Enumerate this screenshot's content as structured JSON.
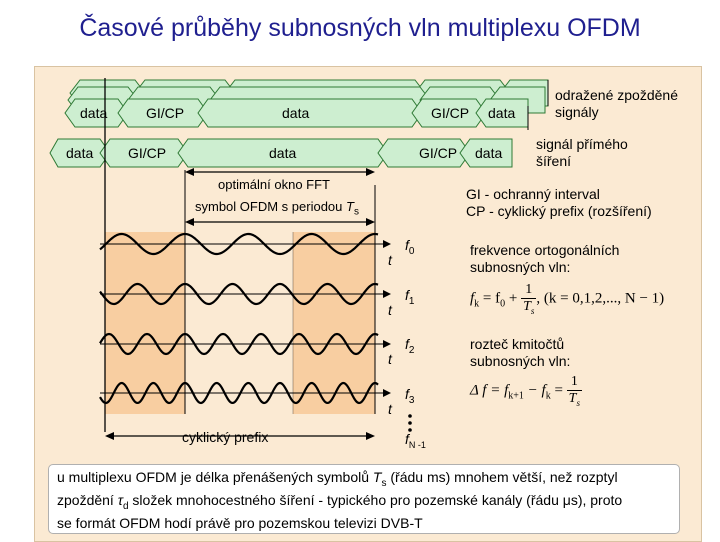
{
  "title": "Časové průběhy subnosných vln multiplexu OFDM",
  "segments": {
    "data": "data",
    "gi_cp": "GI/CP"
  },
  "labels": {
    "reflected": "odražené zpožděné",
    "reflected2": "signály",
    "direct": "signál přímého",
    "direct2": "šíření",
    "fft_window": "optimální okno FFT",
    "symbol_period": "symbol OFDM s periodou ",
    "symbol_period_var": "T",
    "symbol_period_sub": "s",
    "gi_def": "GI - ochranný interval",
    "cp_def": "CP - cyklický prefix (rozšíření)",
    "freq_title1": "frekvence ortogonálních",
    "freq_title2": "subnosných vln:",
    "spacing_title1": "rozteč kmitočtů",
    "spacing_title2": "subnosných vln:",
    "cyclic_prefix": "cyklický prefix",
    "t": "t"
  },
  "subcarriers": [
    {
      "name": "f",
      "sub": "0",
      "cycles": 3
    },
    {
      "name": "f",
      "sub": "1",
      "cycles": 4
    },
    {
      "name": "f",
      "sub": "2",
      "cycles": 5
    },
    {
      "name": "f",
      "sub": "3",
      "cycles": 6
    },
    {
      "name": "f",
      "sub": "N -1",
      "cycles": 0
    }
  ],
  "formulas": {
    "fk_lhs": "f",
    "fk_sub": "k",
    "fk_eq": " = f",
    "fk_sub0": "0",
    "fk_plus": " + ",
    "fk_num": "1",
    "fk_den": "T",
    "fk_den_sub": "s",
    "fk_range": ", (k = 0,1,2,..., N − 1)",
    "df_lhs": "Δ f",
    "df_mid": " = f",
    "df_sub1": "k+1",
    "df_minus": " − f",
    "df_sub2": "k",
    "df_eq": " = ",
    "df_num": "1",
    "df_den": "T",
    "df_den_sub": "s"
  },
  "note": {
    "line1a": "u multiplexu OFDM je délka přenášených symbolů ",
    "line1b": "T",
    "line1c": "s",
    "line1d": " (řádu ms) mnohem větší, než rozptyl",
    "line2a": "zpoždění ",
    "line2b": "τ",
    "line2c": "d",
    "line2d": " složek mnohocestného šíření - typického pro pozemské kanály (řádu ",
    "line2e": "μ",
    "line2f": "s), proto",
    "line3": "se formát OFDM hodí právě pro pozemskou televizi DVB-T"
  },
  "colors": {
    "panel": "#fbead3",
    "segment_fill": "#cdeed0",
    "segment_stroke": "#2f7a35",
    "shade": "#f7c490",
    "title": "#1f1f8f"
  }
}
